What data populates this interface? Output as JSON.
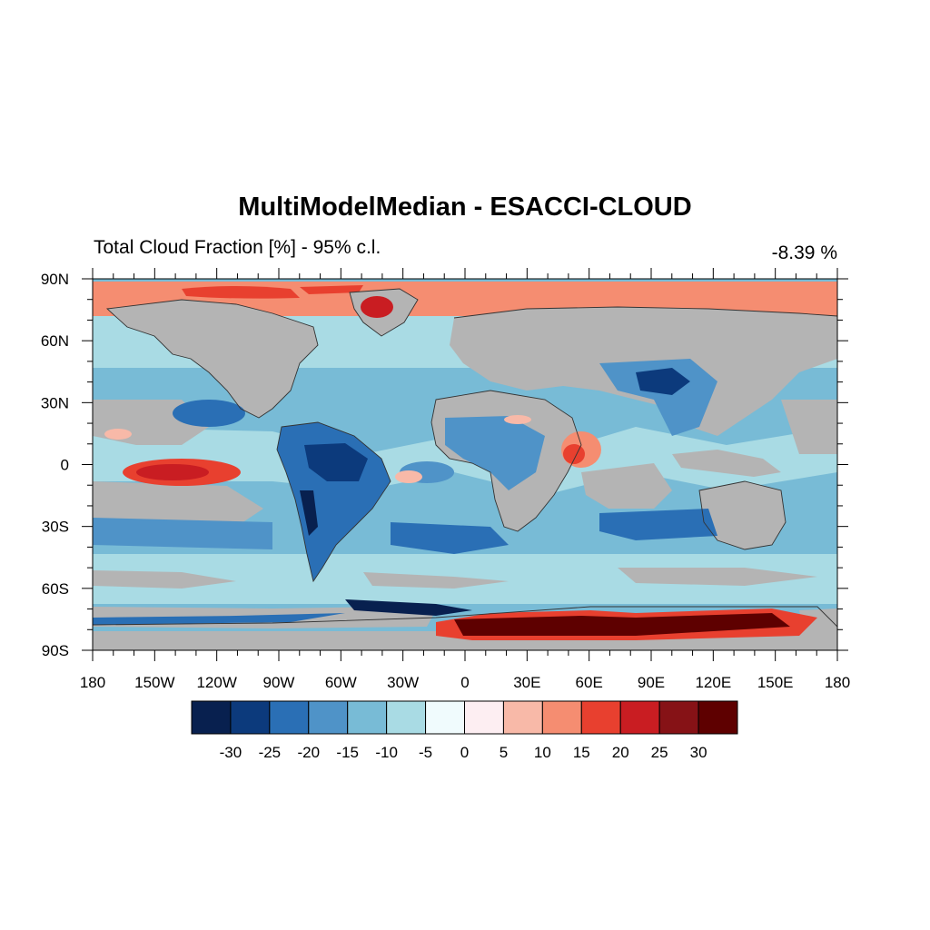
{
  "title": "MultiModelMedian - ESACCI-CLOUD",
  "subtitle": "Total Cloud Fraction [%] - 95% c.l.",
  "global_mean": "-8.39 %",
  "lat_labels": [
    "90N",
    "60N",
    "30N",
    "0",
    "30S",
    "60S",
    "90S"
  ],
  "lon_labels": [
    "180",
    "150W",
    "120W",
    "90W",
    "60W",
    "30W",
    "0",
    "30E",
    "60E",
    "90E",
    "120E",
    "150E",
    "180"
  ],
  "colorbar": {
    "colors": [
      "#08204f",
      "#0c3a7c",
      "#2a6fb5",
      "#4f93c8",
      "#78bbd6",
      "#a9dbe4",
      "#f0fbfd",
      "#fdeef2",
      "#f8b9a8",
      "#f58d71",
      "#e8402f",
      "#c91d22",
      "#861216",
      "#5e0000"
    ],
    "labels": [
      "-30",
      "-25",
      "-20",
      "-15",
      "-10",
      "-5",
      "0",
      "5",
      "10",
      "15",
      "20",
      "25",
      "30"
    ]
  },
  "colors": {
    "not_significant": "#b4b4b4",
    "ocean_background": "#78bbd6",
    "coastline": "#333333"
  }
}
